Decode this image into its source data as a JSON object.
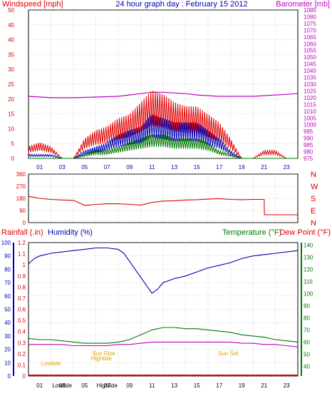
{
  "title": "24 hour graph day : February 15 2012",
  "colors": {
    "red": "#e00000",
    "blue": "#0000b0",
    "green": "#007700",
    "magenta": "#c000c0",
    "orange": "#e0a000",
    "grid": "#b0b0b0"
  },
  "chart_data": [
    {
      "type": "line",
      "panel": "top",
      "left_axis_label": "Windspeed [mph]",
      "right_axis_label": "Barometer [mb]",
      "ylim_left": [
        0,
        50
      ],
      "ylim_right": [
        975,
        1085
      ],
      "left_ticks": [
        "0",
        "5",
        "10",
        "15",
        "20",
        "25",
        "30",
        "35",
        "40",
        "45",
        "50"
      ],
      "right_ticks": [
        "975",
        "980",
        "985",
        "990",
        "995",
        "1000",
        "1005",
        "1010",
        "1015",
        "1020",
        "1025",
        "1030",
        "1035",
        "1040",
        "1045",
        "1050",
        "1055",
        "1060",
        "1065",
        "1070",
        "1075",
        "1080",
        "1085"
      ],
      "x_ticks": [
        "01",
        "03",
        "05",
        "07",
        "09",
        "11",
        "13",
        "15",
        "17",
        "19",
        "21",
        "23"
      ],
      "xlim": [
        0,
        24
      ],
      "series": [
        {
          "name": "Barometer",
          "axis": "right",
          "color": "#c000c0",
          "x": [
            0,
            2,
            4,
            6,
            8,
            9,
            10,
            11,
            12,
            13,
            14,
            15,
            16,
            17,
            18,
            19,
            20,
            21,
            22,
            23,
            24
          ],
          "values": [
            1021,
            1020,
            1020,
            1020.5,
            1021,
            1022,
            1023,
            1024,
            1024,
            1023.5,
            1023,
            1022,
            1021.5,
            1021,
            1021,
            1021,
            1021,
            1021.5,
            1022,
            1022.5,
            1023
          ]
        },
        {
          "name": "Wind gust",
          "axis": "left",
          "color": "#e00000",
          "x": [
            0,
            1,
            2,
            3,
            4,
            5,
            6,
            7,
            8,
            9,
            10,
            11,
            12,
            13,
            14,
            15,
            16,
            17,
            18,
            19,
            20,
            21,
            22,
            23,
            24
          ],
          "values": [
            3,
            4,
            3,
            0,
            0,
            5,
            7,
            8,
            10,
            11,
            14,
            17,
            16,
            14,
            13,
            13,
            11,
            9,
            5,
            0,
            0,
            2,
            2,
            0,
            0
          ]
        },
        {
          "name": "Wind average",
          "axis": "left",
          "color": "#0000b0",
          "x": [
            0,
            1,
            2,
            3,
            4,
            5,
            6,
            7,
            8,
            9,
            10,
            11,
            12,
            13,
            14,
            15,
            16,
            17,
            18,
            19,
            20,
            21,
            22,
            23,
            24
          ],
          "values": [
            1,
            1,
            1,
            0,
            0,
            2,
            3,
            4,
            6,
            7,
            8,
            11,
            10,
            9,
            9,
            9,
            7,
            5,
            2,
            0,
            0,
            0,
            0,
            0,
            0
          ]
        },
        {
          "name": "Wind min",
          "axis": "left",
          "color": "#007700",
          "x": [
            0,
            1,
            2,
            3,
            4,
            5,
            6,
            7,
            8,
            9,
            10,
            11,
            12,
            13,
            14,
            15,
            16,
            17,
            18,
            19,
            20,
            21,
            22,
            23,
            24
          ],
          "values": [
            0,
            0,
            0,
            0,
            0,
            1,
            2,
            2,
            3,
            4,
            5,
            6,
            6,
            5,
            5,
            5,
            4,
            2,
            1,
            0,
            0,
            0,
            0,
            0,
            0
          ]
        }
      ]
    },
    {
      "type": "line",
      "panel": "middle",
      "left_axis_label": "",
      "ylim_left": [
        0,
        360
      ],
      "left_ticks": [
        "0",
        "90",
        "180",
        "270",
        "360"
      ],
      "direction_labels": [
        "N",
        "W",
        "S",
        "E",
        "N"
      ],
      "xlim": [
        0,
        24
      ],
      "series": [
        {
          "name": "Wind direction",
          "color": "#e00000",
          "x": [
            0,
            1,
            2,
            3,
            4,
            5,
            6,
            7,
            8,
            9,
            10,
            11,
            12,
            13,
            14,
            15,
            16,
            17,
            18,
            19,
            20,
            21,
            21.02,
            22,
            23,
            24
          ],
          "values": [
            195,
            180,
            172,
            168,
            165,
            128,
            135,
            140,
            140,
            135,
            130,
            150,
            160,
            162,
            168,
            170,
            174,
            178,
            172,
            170,
            172,
            172,
            58,
            58,
            58,
            58
          ]
        }
      ]
    },
    {
      "type": "line",
      "panel": "bottom",
      "left_axis_label_1": "Rainfall (.in)",
      "left_axis_label_2": "Humidity (%)",
      "right_axis_label_1": "Temperature (°F)",
      "right_axis_label_2": "Dew Point (°F)",
      "rain_ticks": [
        "0",
        "0.1",
        "0.2",
        "0.3",
        "0.4",
        "0.5",
        "0.6",
        "0.7",
        "0.8",
        "0.9",
        "1",
        "1.1",
        "1.2"
      ],
      "humidity_ticks": [
        "0",
        "10",
        "20",
        "30",
        "40",
        "50",
        "60",
        "70",
        "80",
        "90",
        "100"
      ],
      "temp_ticks": [
        "40",
        "50",
        "60",
        "70",
        "80",
        "90",
        "100",
        "110",
        "120",
        "130",
        "140"
      ],
      "x_ticks": [
        "01",
        "03",
        "05",
        "07",
        "09",
        "11",
        "13",
        "15",
        "17",
        "19",
        "21",
        "23"
      ],
      "xlim": [
        0,
        24
      ],
      "ylim_humidity": [
        0,
        100
      ],
      "ylim_temp": [
        32,
        142
      ],
      "annotations": [
        {
          "label": "Lowtide",
          "x": 2
        },
        {
          "label": "Sun Rise",
          "x": 6.7
        },
        {
          "label": "Hightide",
          "x": 6.5
        },
        {
          "label": "Sun Set",
          "x": 17.8
        }
      ],
      "x_event_labels": [
        {
          "label": "Lowtide",
          "x": 3
        },
        {
          "label": "Hightide",
          "x": 7
        }
      ],
      "series": [
        {
          "name": "Humidity",
          "axis": "humidity",
          "color": "#0000b0",
          "x": [
            0,
            0.5,
            1,
            2,
            3,
            4,
            5,
            6,
            7,
            8,
            8.5,
            9,
            9.5,
            10,
            10.5,
            11,
            11.5,
            12,
            13,
            14,
            15,
            16,
            17,
            18,
            19,
            20,
            21,
            22,
            23,
            24
          ],
          "values": [
            84,
            88,
            90,
            92,
            93,
            94,
            95,
            96,
            96,
            95,
            92,
            86,
            80,
            74,
            68,
            62,
            65,
            70,
            73,
            75,
            78,
            81,
            83,
            85,
            88,
            90,
            91,
            92,
            93,
            94
          ]
        },
        {
          "name": "Temperature",
          "axis": "temp",
          "color": "#007700",
          "x": [
            0,
            1,
            2,
            3,
            4,
            5,
            6,
            7,
            8,
            9,
            10,
            11,
            12,
            13,
            14,
            15,
            16,
            17,
            18,
            19,
            20,
            21,
            22,
            23,
            24
          ],
          "values": [
            63,
            62,
            62,
            61,
            60,
            59,
            59,
            59,
            60,
            62,
            66,
            70,
            72,
            72,
            71,
            71,
            70,
            69,
            68,
            66,
            65,
            64,
            62,
            61,
            60
          ]
        },
        {
          "name": "Dew Point",
          "axis": "temp",
          "color": "#c000c0",
          "x": [
            0,
            1,
            2,
            3,
            4,
            5,
            6,
            7,
            8,
            9,
            10,
            11,
            12,
            13,
            14,
            15,
            16,
            17,
            18,
            19,
            20,
            21,
            22,
            23,
            24
          ],
          "values": [
            58,
            58,
            58,
            58,
            57,
            57,
            57,
            57,
            58,
            58,
            59,
            60,
            60,
            60,
            60,
            60,
            60,
            60,
            60,
            59,
            59,
            58,
            58,
            57,
            56
          ]
        }
      ]
    }
  ]
}
